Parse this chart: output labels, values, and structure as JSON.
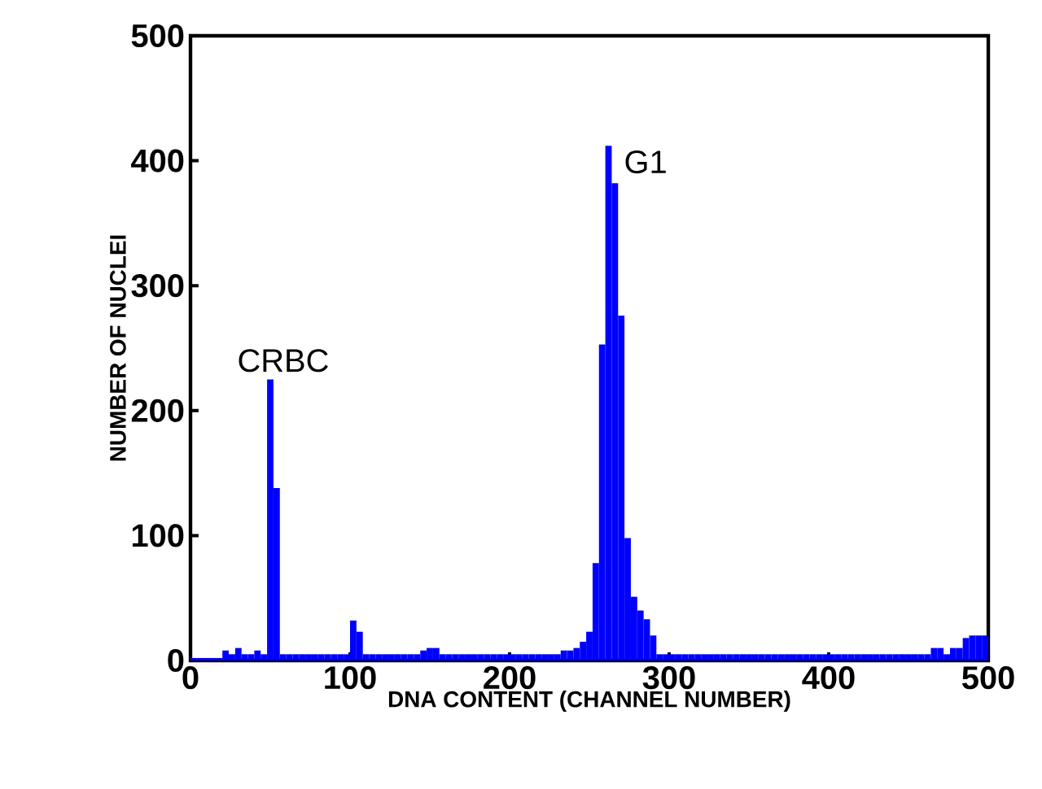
{
  "chart_data": {
    "type": "histogram",
    "xlabel": "DNA CONTENT (CHANNEL NUMBER)",
    "ylabel": "NUMBER OF NUCLEI",
    "bins": [
      0,
      4,
      8,
      12,
      16,
      20,
      24,
      28,
      32,
      36,
      40,
      44,
      48,
      52,
      56,
      60,
      64,
      68,
      72,
      76,
      80,
      84,
      88,
      92,
      96,
      100,
      104,
      108,
      112,
      116,
      120,
      124,
      128,
      132,
      136,
      140,
      144,
      148,
      152,
      156,
      160,
      164,
      168,
      172,
      176,
      180,
      184,
      188,
      192,
      196,
      200,
      204,
      208,
      212,
      216,
      220,
      224,
      228,
      232,
      236,
      240,
      244,
      248,
      252,
      256,
      260,
      264,
      268,
      272,
      276,
      280,
      284,
      288,
      292,
      296,
      300,
      304,
      308,
      312,
      316,
      320,
      324,
      328,
      332,
      336,
      340,
      344,
      348,
      352,
      356,
      360,
      364,
      368,
      372,
      376,
      380,
      384,
      388,
      392,
      396,
      400,
      404,
      408,
      412,
      416,
      420,
      424,
      428,
      432,
      436,
      440,
      444,
      448,
      452,
      456,
      460,
      464,
      468,
      472,
      476,
      480,
      484,
      488,
      492,
      496,
      500
    ],
    "values": [
      2,
      2,
      2,
      2,
      2,
      8,
      5,
      10,
      5,
      5,
      8,
      5,
      225,
      138,
      5,
      5,
      5,
      5,
      5,
      5,
      5,
      5,
      5,
      5,
      5,
      32,
      23,
      5,
      5,
      5,
      5,
      5,
      5,
      5,
      5,
      5,
      8,
      10,
      10,
      5,
      5,
      5,
      5,
      5,
      5,
      5,
      5,
      5,
      5,
      5,
      5,
      5,
      5,
      5,
      5,
      5,
      5,
      5,
      8,
      8,
      10,
      15,
      23,
      78,
      253,
      412,
      382,
      276,
      98,
      51,
      40,
      33,
      20,
      5,
      5,
      5,
      5,
      5,
      5,
      5,
      5,
      5,
      5,
      5,
      5,
      5,
      5,
      5,
      5,
      5,
      5,
      5,
      5,
      5,
      5,
      5,
      5,
      5,
      5,
      5,
      5,
      5,
      5,
      5,
      5,
      5,
      5,
      5,
      5,
      5,
      5,
      5,
      5,
      5,
      5,
      5,
      10,
      10,
      5,
      10,
      10,
      18,
      20,
      20,
      20
    ],
    "color": "#0000ff",
    "xlim": [
      0,
      500
    ],
    "ylim": [
      0,
      500
    ],
    "xticks": [
      0,
      100,
      200,
      300,
      400,
      500
    ],
    "yticks": [
      0,
      100,
      200,
      300,
      400,
      500
    ],
    "annotations": [
      {
        "text": "CRBC",
        "x": 50,
        "y": 225
      },
      {
        "text": "G1",
        "x": 262,
        "y": 412
      }
    ]
  }
}
